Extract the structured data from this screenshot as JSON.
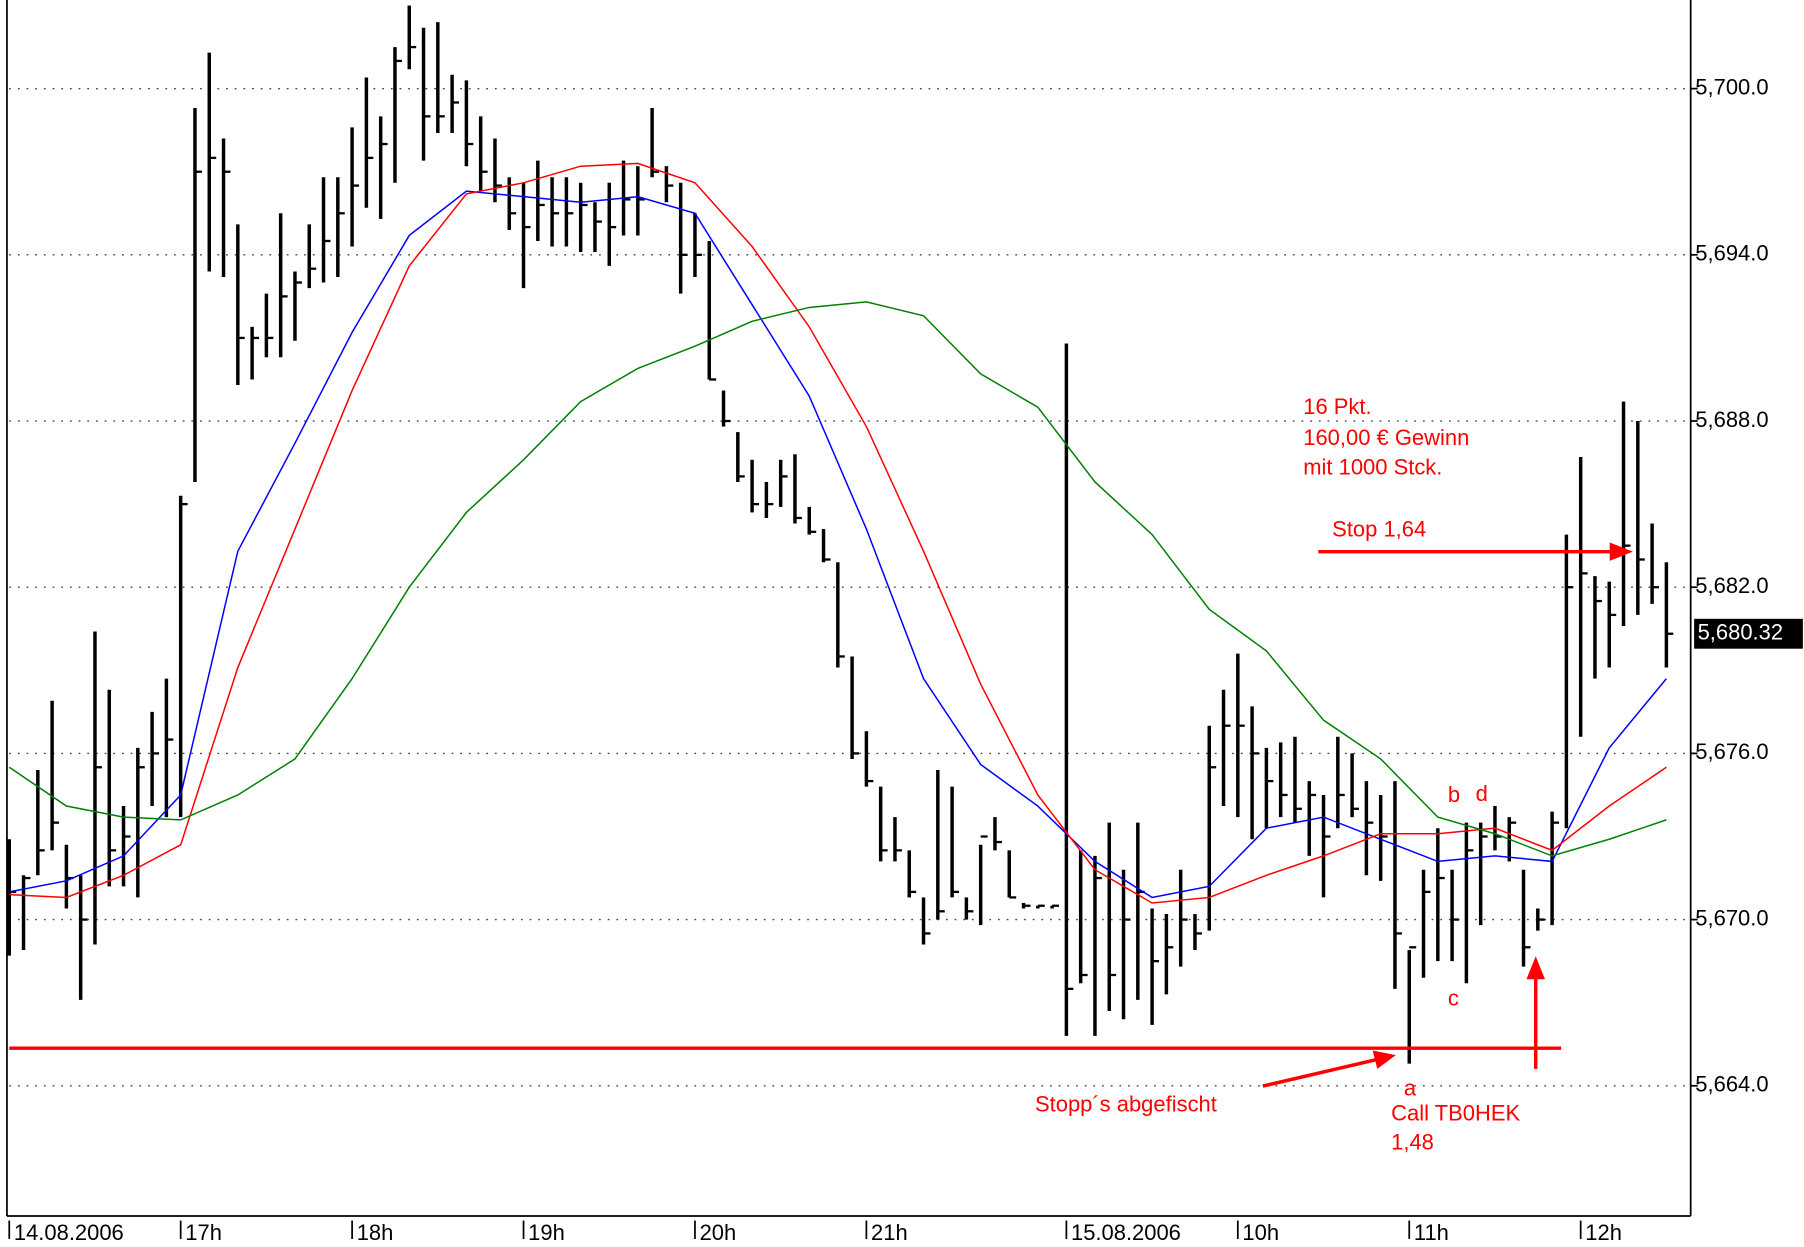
{
  "chart_data": {
    "type": "ohlc",
    "color": "#000000",
    "grid": true,
    "xlim": [
      0,
      117.7
    ],
    "ylim": [
      5659.3,
      5703.2
    ],
    "yticks": [
      {
        "value": 5664,
        "label": "5,664.0"
      },
      {
        "value": 5670,
        "label": "5,670.0"
      },
      {
        "value": 5676,
        "label": "5,676.0"
      },
      {
        "value": 5682,
        "label": "5,682.0"
      },
      {
        "value": 5688,
        "label": "5,688.0"
      },
      {
        "value": 5694,
        "label": "5,694.0"
      },
      {
        "value": 5700,
        "label": "5,700.0"
      }
    ],
    "xticks": [
      {
        "value": 0,
        "label": "14.08.2006"
      },
      {
        "value": 12,
        "label": "17h"
      },
      {
        "value": 24,
        "label": "18h"
      },
      {
        "value": 36,
        "label": "19h"
      },
      {
        "value": 48,
        "label": "20h"
      },
      {
        "value": 60,
        "label": "21h"
      },
      {
        "value": 74,
        "label": "15.08.2006"
      },
      {
        "value": 86,
        "label": "10h"
      },
      {
        "value": 98,
        "label": "11h"
      },
      {
        "value": 110,
        "label": "12h"
      }
    ],
    "high": [
      5672.9,
      5671.6,
      5675.4,
      5677.9,
      5672.7,
      5671.6,
      5680.4,
      5678.3,
      5674.1,
      5676.2,
      5677.5,
      5678.7,
      5685.3,
      5699.3,
      5701.3,
      5698.2,
      5695.1,
      5691.4,
      5692.6,
      5695.5,
      5693.4,
      5695.1,
      5696.8,
      5696.8,
      5698.6,
      5700.4,
      5699.0,
      5701.5,
      5703.0,
      5702.2,
      5702.4,
      5700.5,
      5700.3,
      5699.0,
      5698.2,
      5696.8,
      5696.6,
      5697.4,
      5696.8,
      5696.8,
      5696.6,
      5695.9,
      5696.6,
      5697.4,
      5697.2,
      5699.3,
      5697.2,
      5696.6,
      5695.5,
      5694.5,
      5689.1,
      5687.6,
      5686.6,
      5685.8,
      5686.6,
      5686.8,
      5684.9,
      5684.1,
      5682.9,
      5679.5,
      5676.8,
      5674.8,
      5673.7,
      5672.5,
      5670.8,
      5675.4,
      5674.8,
      5670.8,
      5672.7,
      5673.7,
      5672.5,
      5670.6,
      5670.5,
      5670.5,
      5690.8,
      5672.5,
      5672.3,
      5673.5,
      5671.8,
      5673.5,
      5670.4,
      5670.2,
      5671.8,
      5670.2,
      5677.0,
      5678.3,
      5679.6,
      5677.7,
      5676.2,
      5676.4,
      5676.6,
      5675.0,
      5674.5,
      5676.6,
      5676.0,
      5675.0,
      5674.5,
      5675.0,
      5668.9,
      5671.8,
      5673.3,
      5671.8,
      5673.5,
      5673.5,
      5674.1,
      5673.7,
      5671.8,
      5670.4,
      5673.9,
      5683.9,
      5686.7,
      5682.4,
      5682.2,
      5688.7,
      5688.0,
      5684.3,
      5682.9
    ],
    "low": [
      5668.7,
      5668.9,
      5671.6,
      5672.5,
      5670.4,
      5667.1,
      5669.1,
      5671.2,
      5671.2,
      5670.8,
      5674.1,
      5673.7,
      5673.7,
      5685.8,
      5693.4,
      5693.2,
      5689.3,
      5689.5,
      5690.3,
      5690.3,
      5690.9,
      5692.8,
      5693.0,
      5693.2,
      5694.3,
      5695.7,
      5695.3,
      5696.6,
      5700.7,
      5697.4,
      5698.4,
      5698.4,
      5697.2,
      5696.3,
      5695.9,
      5694.9,
      5692.8,
      5694.5,
      5694.3,
      5694.3,
      5694.1,
      5694.1,
      5693.6,
      5694.7,
      5694.7,
      5696.8,
      5695.9,
      5692.6,
      5693.2,
      5689.5,
      5687.8,
      5685.8,
      5684.7,
      5684.5,
      5684.9,
      5684.3,
      5683.9,
      5682.9,
      5679.1,
      5675.8,
      5674.8,
      5672.1,
      5672.1,
      5670.8,
      5669.1,
      5670.0,
      5670.8,
      5670.0,
      5669.8,
      5672.5,
      5670.8,
      5670.4,
      5670.4,
      5670.4,
      5665.8,
      5667.7,
      5665.8,
      5666.7,
      5666.4,
      5667.1,
      5666.2,
      5667.3,
      5668.3,
      5668.9,
      5669.6,
      5674.1,
      5673.7,
      5672.9,
      5673.3,
      5673.7,
      5673.5,
      5672.3,
      5670.8,
      5673.3,
      5673.7,
      5671.6,
      5671.4,
      5667.5,
      5664.8,
      5667.9,
      5668.5,
      5668.5,
      5667.7,
      5669.8,
      5672.5,
      5672.1,
      5668.3,
      5669.6,
      5669.8,
      5673.3,
      5676.6,
      5678.7,
      5679.1,
      5680.6,
      5681.0,
      5681.4,
      5679.1
    ],
    "close": [
      5671.0,
      5671.5,
      5672.5,
      5673.5,
      5671.5,
      5670.0,
      5675.5,
      5672.5,
      5673.0,
      5675.5,
      5676.0,
      5676.5,
      5685.0,
      5697.0,
      5697.5,
      5697.0,
      5691.0,
      5691.0,
      5691.0,
      5692.5,
      5693.0,
      5693.5,
      5694.5,
      5695.5,
      5696.5,
      5697.5,
      5698.0,
      5701.0,
      5701.5,
      5699.0,
      5699.0,
      5699.5,
      5698.0,
      5697.0,
      5696.5,
      5695.5,
      5695.0,
      5695.8,
      5695.5,
      5695.5,
      5695.8,
      5695.2,
      5695.0,
      5696.0,
      5696.0,
      5697.0,
      5696.5,
      5694.0,
      5694.0,
      5689.5,
      5688.0,
      5686.0,
      5685.0,
      5685.0,
      5686.0,
      5684.5,
      5684.0,
      5683.0,
      5679.5,
      5676.0,
      5675.0,
      5672.5,
      5672.5,
      5671.0,
      5669.5,
      5670.3,
      5671.0,
      5670.3,
      5673.0,
      5672.8,
      5670.8,
      5670.5,
      5670.5,
      5670.5,
      5667.5,
      5668.0,
      5671.5,
      5668.0,
      5670.0,
      5671.0,
      5668.5,
      5669.0,
      5670.0,
      5669.5,
      5675.5,
      5677.0,
      5677.0,
      5676.0,
      5675.0,
      5674.5,
      5674.0,
      5674.5,
      5673.0,
      5674.5,
      5674.0,
      5673.5,
      5673.0,
      5669.5,
      5669.0,
      5671.0,
      5671.5,
      5670.0,
      5672.5,
      5673.0,
      5673.0,
      5673.5,
      5669.0,
      5670.0,
      5673.5,
      5682.0,
      5682.5,
      5681.5,
      5681.0,
      5683.5,
      5683.0,
      5682.0,
      5680.32
    ],
    "close_label": "5,680.32",
    "ma_x": [
      0,
      4,
      8,
      12,
      16,
      20,
      24,
      28,
      32,
      36,
      40,
      44,
      48,
      52,
      56,
      60,
      64,
      68,
      72,
      76,
      80,
      84,
      88,
      92,
      96,
      100,
      104,
      108,
      112,
      116
    ],
    "lines": [
      {
        "color": "#0000ff",
        "values": [
          5671.0,
          5671.4,
          5672.3,
          5674.5,
          5683.3,
          5687.2,
          5691.2,
          5694.7,
          5696.3,
          5696.1,
          5695.9,
          5696.1,
          5695.5,
          5692.2,
          5688.9,
          5684.1,
          5678.7,
          5675.6,
          5674.1,
          5672.1,
          5670.8,
          5671.2,
          5673.3,
          5673.7,
          5672.9,
          5672.1,
          5672.3,
          5672.1,
          5676.2,
          5678.7
        ]
      },
      {
        "color": "#ff0000",
        "values": [
          5670.9,
          5670.8,
          5671.6,
          5672.7,
          5679.1,
          5684.1,
          5689.1,
          5693.6,
          5696.2,
          5696.6,
          5697.2,
          5697.3,
          5696.6,
          5694.3,
          5691.4,
          5687.8,
          5683.3,
          5678.5,
          5674.5,
          5671.8,
          5670.6,
          5670.8,
          5671.6,
          5672.3,
          5673.1,
          5673.1,
          5673.3,
          5672.5,
          5674.1,
          5675.5
        ]
      },
      {
        "color": "#008000",
        "values": [
          5675.5,
          5674.1,
          5673.7,
          5673.6,
          5674.5,
          5675.8,
          5678.7,
          5682.0,
          5684.7,
          5686.6,
          5688.7,
          5689.9,
          5690.7,
          5691.6,
          5692.1,
          5692.3,
          5691.8,
          5689.7,
          5688.5,
          5685.8,
          5683.9,
          5681.2,
          5679.7,
          5677.2,
          5675.8,
          5673.7,
          5673.1,
          5672.3,
          5672.9,
          5673.6
        ]
      }
    ],
    "annotations": [
      "16 Pkt.",
      "160,00 € Gewinn",
      "mit 1000 Stck.",
      "Stop 1,64",
      "Stopp´s abgefischt",
      "a",
      "Call TB0HEK",
      "1,48",
      "b",
      "c",
      "d"
    ]
  }
}
